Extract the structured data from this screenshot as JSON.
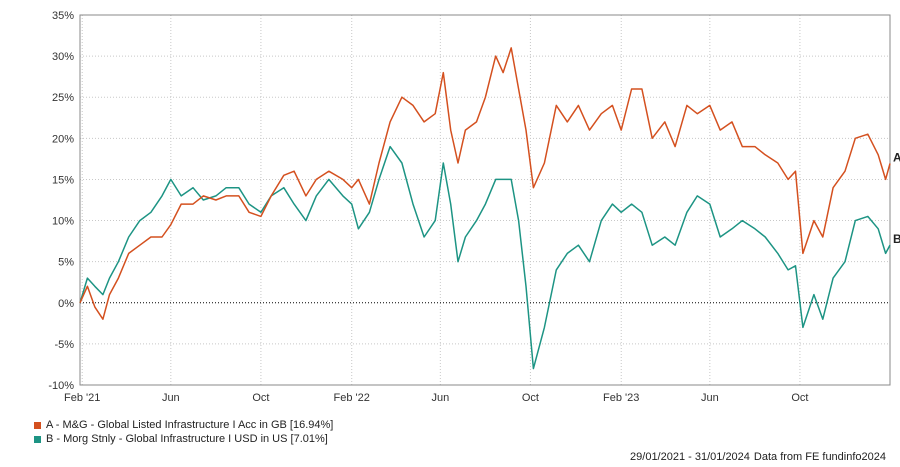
{
  "chart_data": {
    "type": "line",
    "y_unit": "%",
    "ylim": [
      -10,
      35
    ],
    "yticks": [
      -10,
      -5,
      0,
      5,
      10,
      15,
      20,
      25,
      30,
      35
    ],
    "ytick_labels": [
      "-10%",
      "-5%",
      "0%",
      "5%",
      "10%",
      "15%",
      "20%",
      "25%",
      "30%",
      "35%"
    ],
    "x_range": [
      "2021-01-29",
      "2024-01-31"
    ],
    "xticks": [
      {
        "date": "2021-02-01",
        "label": "Feb '21"
      },
      {
        "date": "2021-06-01",
        "label": "Jun"
      },
      {
        "date": "2021-10-01",
        "label": "Oct"
      },
      {
        "date": "2022-02-01",
        "label": "Feb '22"
      },
      {
        "date": "2022-06-01",
        "label": "Jun"
      },
      {
        "date": "2022-10-01",
        "label": "Oct"
      },
      {
        "date": "2023-02-01",
        "label": "Feb '23"
      },
      {
        "date": "2023-06-01",
        "label": "Jun"
      },
      {
        "date": "2023-10-01",
        "label": "Oct"
      }
    ],
    "grid": true,
    "zero_line": "dotted",
    "series": [
      {
        "key": "A",
        "name": "A - M&G - Global Listed Infrastructure I Acc in GB [16.94%]",
        "color": "#d4501f",
        "points": [
          [
            "2021-01-29",
            0
          ],
          [
            "2021-02-08",
            2
          ],
          [
            "2021-02-18",
            -0.5
          ],
          [
            "2021-03-01",
            -2
          ],
          [
            "2021-03-10",
            1
          ],
          [
            "2021-03-22",
            3
          ],
          [
            "2021-04-05",
            6
          ],
          [
            "2021-04-20",
            7
          ],
          [
            "2021-05-05",
            8
          ],
          [
            "2021-05-20",
            8
          ],
          [
            "2021-06-01",
            9.5
          ],
          [
            "2021-06-15",
            12
          ],
          [
            "2021-07-01",
            12
          ],
          [
            "2021-07-15",
            13
          ],
          [
            "2021-08-01",
            12.5
          ],
          [
            "2021-08-15",
            13
          ],
          [
            "2021-09-01",
            13
          ],
          [
            "2021-09-15",
            11
          ],
          [
            "2021-10-01",
            10.5
          ],
          [
            "2021-10-15",
            13
          ],
          [
            "2021-11-01",
            15.5
          ],
          [
            "2021-11-15",
            16
          ],
          [
            "2021-12-01",
            13
          ],
          [
            "2021-12-15",
            15
          ],
          [
            "2022-01-01",
            16
          ],
          [
            "2022-01-20",
            15
          ],
          [
            "2022-02-01",
            14
          ],
          [
            "2022-02-10",
            15
          ],
          [
            "2022-02-25",
            12
          ],
          [
            "2022-03-10",
            17
          ],
          [
            "2022-03-25",
            22
          ],
          [
            "2022-04-10",
            25
          ],
          [
            "2022-04-25",
            24
          ],
          [
            "2022-05-10",
            22
          ],
          [
            "2022-05-25",
            23
          ],
          [
            "2022-06-05",
            28
          ],
          [
            "2022-06-15",
            21
          ],
          [
            "2022-06-25",
            17
          ],
          [
            "2022-07-05",
            21
          ],
          [
            "2022-07-20",
            22
          ],
          [
            "2022-08-01",
            25
          ],
          [
            "2022-08-15",
            30
          ],
          [
            "2022-08-25",
            28
          ],
          [
            "2022-09-05",
            31
          ],
          [
            "2022-09-15",
            26
          ],
          [
            "2022-09-25",
            21
          ],
          [
            "2022-10-05",
            14
          ],
          [
            "2022-10-20",
            17
          ],
          [
            "2022-11-05",
            24
          ],
          [
            "2022-11-20",
            22
          ],
          [
            "2022-12-05",
            24
          ],
          [
            "2022-12-20",
            21
          ],
          [
            "2023-01-05",
            23
          ],
          [
            "2023-01-20",
            24
          ],
          [
            "2023-02-01",
            21
          ],
          [
            "2023-02-15",
            26
          ],
          [
            "2023-03-01",
            26
          ],
          [
            "2023-03-15",
            20
          ],
          [
            "2023-04-01",
            22
          ],
          [
            "2023-04-15",
            19
          ],
          [
            "2023-05-01",
            24
          ],
          [
            "2023-05-15",
            23
          ],
          [
            "2023-06-01",
            24
          ],
          [
            "2023-06-15",
            21
          ],
          [
            "2023-07-01",
            22
          ],
          [
            "2023-07-15",
            19
          ],
          [
            "2023-08-01",
            19
          ],
          [
            "2023-08-15",
            18
          ],
          [
            "2023-09-01",
            17
          ],
          [
            "2023-09-15",
            15
          ],
          [
            "2023-09-25",
            16
          ],
          [
            "2023-10-05",
            6
          ],
          [
            "2023-10-20",
            10
          ],
          [
            "2023-11-01",
            8
          ],
          [
            "2023-11-15",
            14
          ],
          [
            "2023-12-01",
            16
          ],
          [
            "2023-12-15",
            20
          ],
          [
            "2024-01-01",
            20.5
          ],
          [
            "2024-01-15",
            18
          ],
          [
            "2024-01-25",
            15
          ],
          [
            "2024-01-31",
            16.94
          ]
        ]
      },
      {
        "key": "B",
        "name": "B - Morg Stnly - Global Infrastructure I USD in US [7.01%]",
        "color": "#1d9484",
        "points": [
          [
            "2021-01-29",
            0
          ],
          [
            "2021-02-08",
            3
          ],
          [
            "2021-02-18",
            2
          ],
          [
            "2021-03-01",
            1
          ],
          [
            "2021-03-10",
            3
          ],
          [
            "2021-03-22",
            5
          ],
          [
            "2021-04-05",
            8
          ],
          [
            "2021-04-20",
            10
          ],
          [
            "2021-05-05",
            11
          ],
          [
            "2021-05-20",
            13
          ],
          [
            "2021-06-01",
            15
          ],
          [
            "2021-06-15",
            13
          ],
          [
            "2021-07-01",
            14
          ],
          [
            "2021-07-15",
            12.5
          ],
          [
            "2021-08-01",
            13
          ],
          [
            "2021-08-15",
            14
          ],
          [
            "2021-09-01",
            14
          ],
          [
            "2021-09-15",
            12
          ],
          [
            "2021-10-01",
            11
          ],
          [
            "2021-10-15",
            13
          ],
          [
            "2021-11-01",
            14
          ],
          [
            "2021-11-15",
            12
          ],
          [
            "2021-12-01",
            10
          ],
          [
            "2021-12-15",
            13
          ],
          [
            "2022-01-01",
            15
          ],
          [
            "2022-01-20",
            13
          ],
          [
            "2022-02-01",
            12
          ],
          [
            "2022-02-10",
            9
          ],
          [
            "2022-02-25",
            11
          ],
          [
            "2022-03-10",
            15
          ],
          [
            "2022-03-25",
            19
          ],
          [
            "2022-04-10",
            17
          ],
          [
            "2022-04-25",
            12
          ],
          [
            "2022-05-10",
            8
          ],
          [
            "2022-05-25",
            10
          ],
          [
            "2022-06-05",
            17
          ],
          [
            "2022-06-15",
            12
          ],
          [
            "2022-06-25",
            5
          ],
          [
            "2022-07-05",
            8
          ],
          [
            "2022-07-20",
            10
          ],
          [
            "2022-08-01",
            12
          ],
          [
            "2022-08-15",
            15
          ],
          [
            "2022-08-25",
            15
          ],
          [
            "2022-09-05",
            15
          ],
          [
            "2022-09-15",
            10
          ],
          [
            "2022-09-25",
            2
          ],
          [
            "2022-10-05",
            -8
          ],
          [
            "2022-10-20",
            -3
          ],
          [
            "2022-11-05",
            4
          ],
          [
            "2022-11-20",
            6
          ],
          [
            "2022-12-05",
            7
          ],
          [
            "2022-12-20",
            5
          ],
          [
            "2023-01-05",
            10
          ],
          [
            "2023-01-20",
            12
          ],
          [
            "2023-02-01",
            11
          ],
          [
            "2023-02-15",
            12
          ],
          [
            "2023-03-01",
            11
          ],
          [
            "2023-03-15",
            7
          ],
          [
            "2023-04-01",
            8
          ],
          [
            "2023-04-15",
            7
          ],
          [
            "2023-05-01",
            11
          ],
          [
            "2023-05-15",
            13
          ],
          [
            "2023-06-01",
            12
          ],
          [
            "2023-06-15",
            8
          ],
          [
            "2023-07-01",
            9
          ],
          [
            "2023-07-15",
            10
          ],
          [
            "2023-08-01",
            9
          ],
          [
            "2023-08-15",
            8
          ],
          [
            "2023-09-01",
            6
          ],
          [
            "2023-09-15",
            4
          ],
          [
            "2023-09-25",
            4.5
          ],
          [
            "2023-10-05",
            -3
          ],
          [
            "2023-10-20",
            1
          ],
          [
            "2023-11-01",
            -2
          ],
          [
            "2023-11-15",
            3
          ],
          [
            "2023-12-01",
            5
          ],
          [
            "2023-12-15",
            10
          ],
          [
            "2024-01-01",
            10.5
          ],
          [
            "2024-01-15",
            9
          ],
          [
            "2024-01-25",
            6
          ],
          [
            "2024-01-31",
            7.01
          ]
        ]
      }
    ]
  },
  "footer": {
    "date_range": "29/01/2021 - 31/01/2024",
    "source": "Data from FE fundinfo2024"
  }
}
